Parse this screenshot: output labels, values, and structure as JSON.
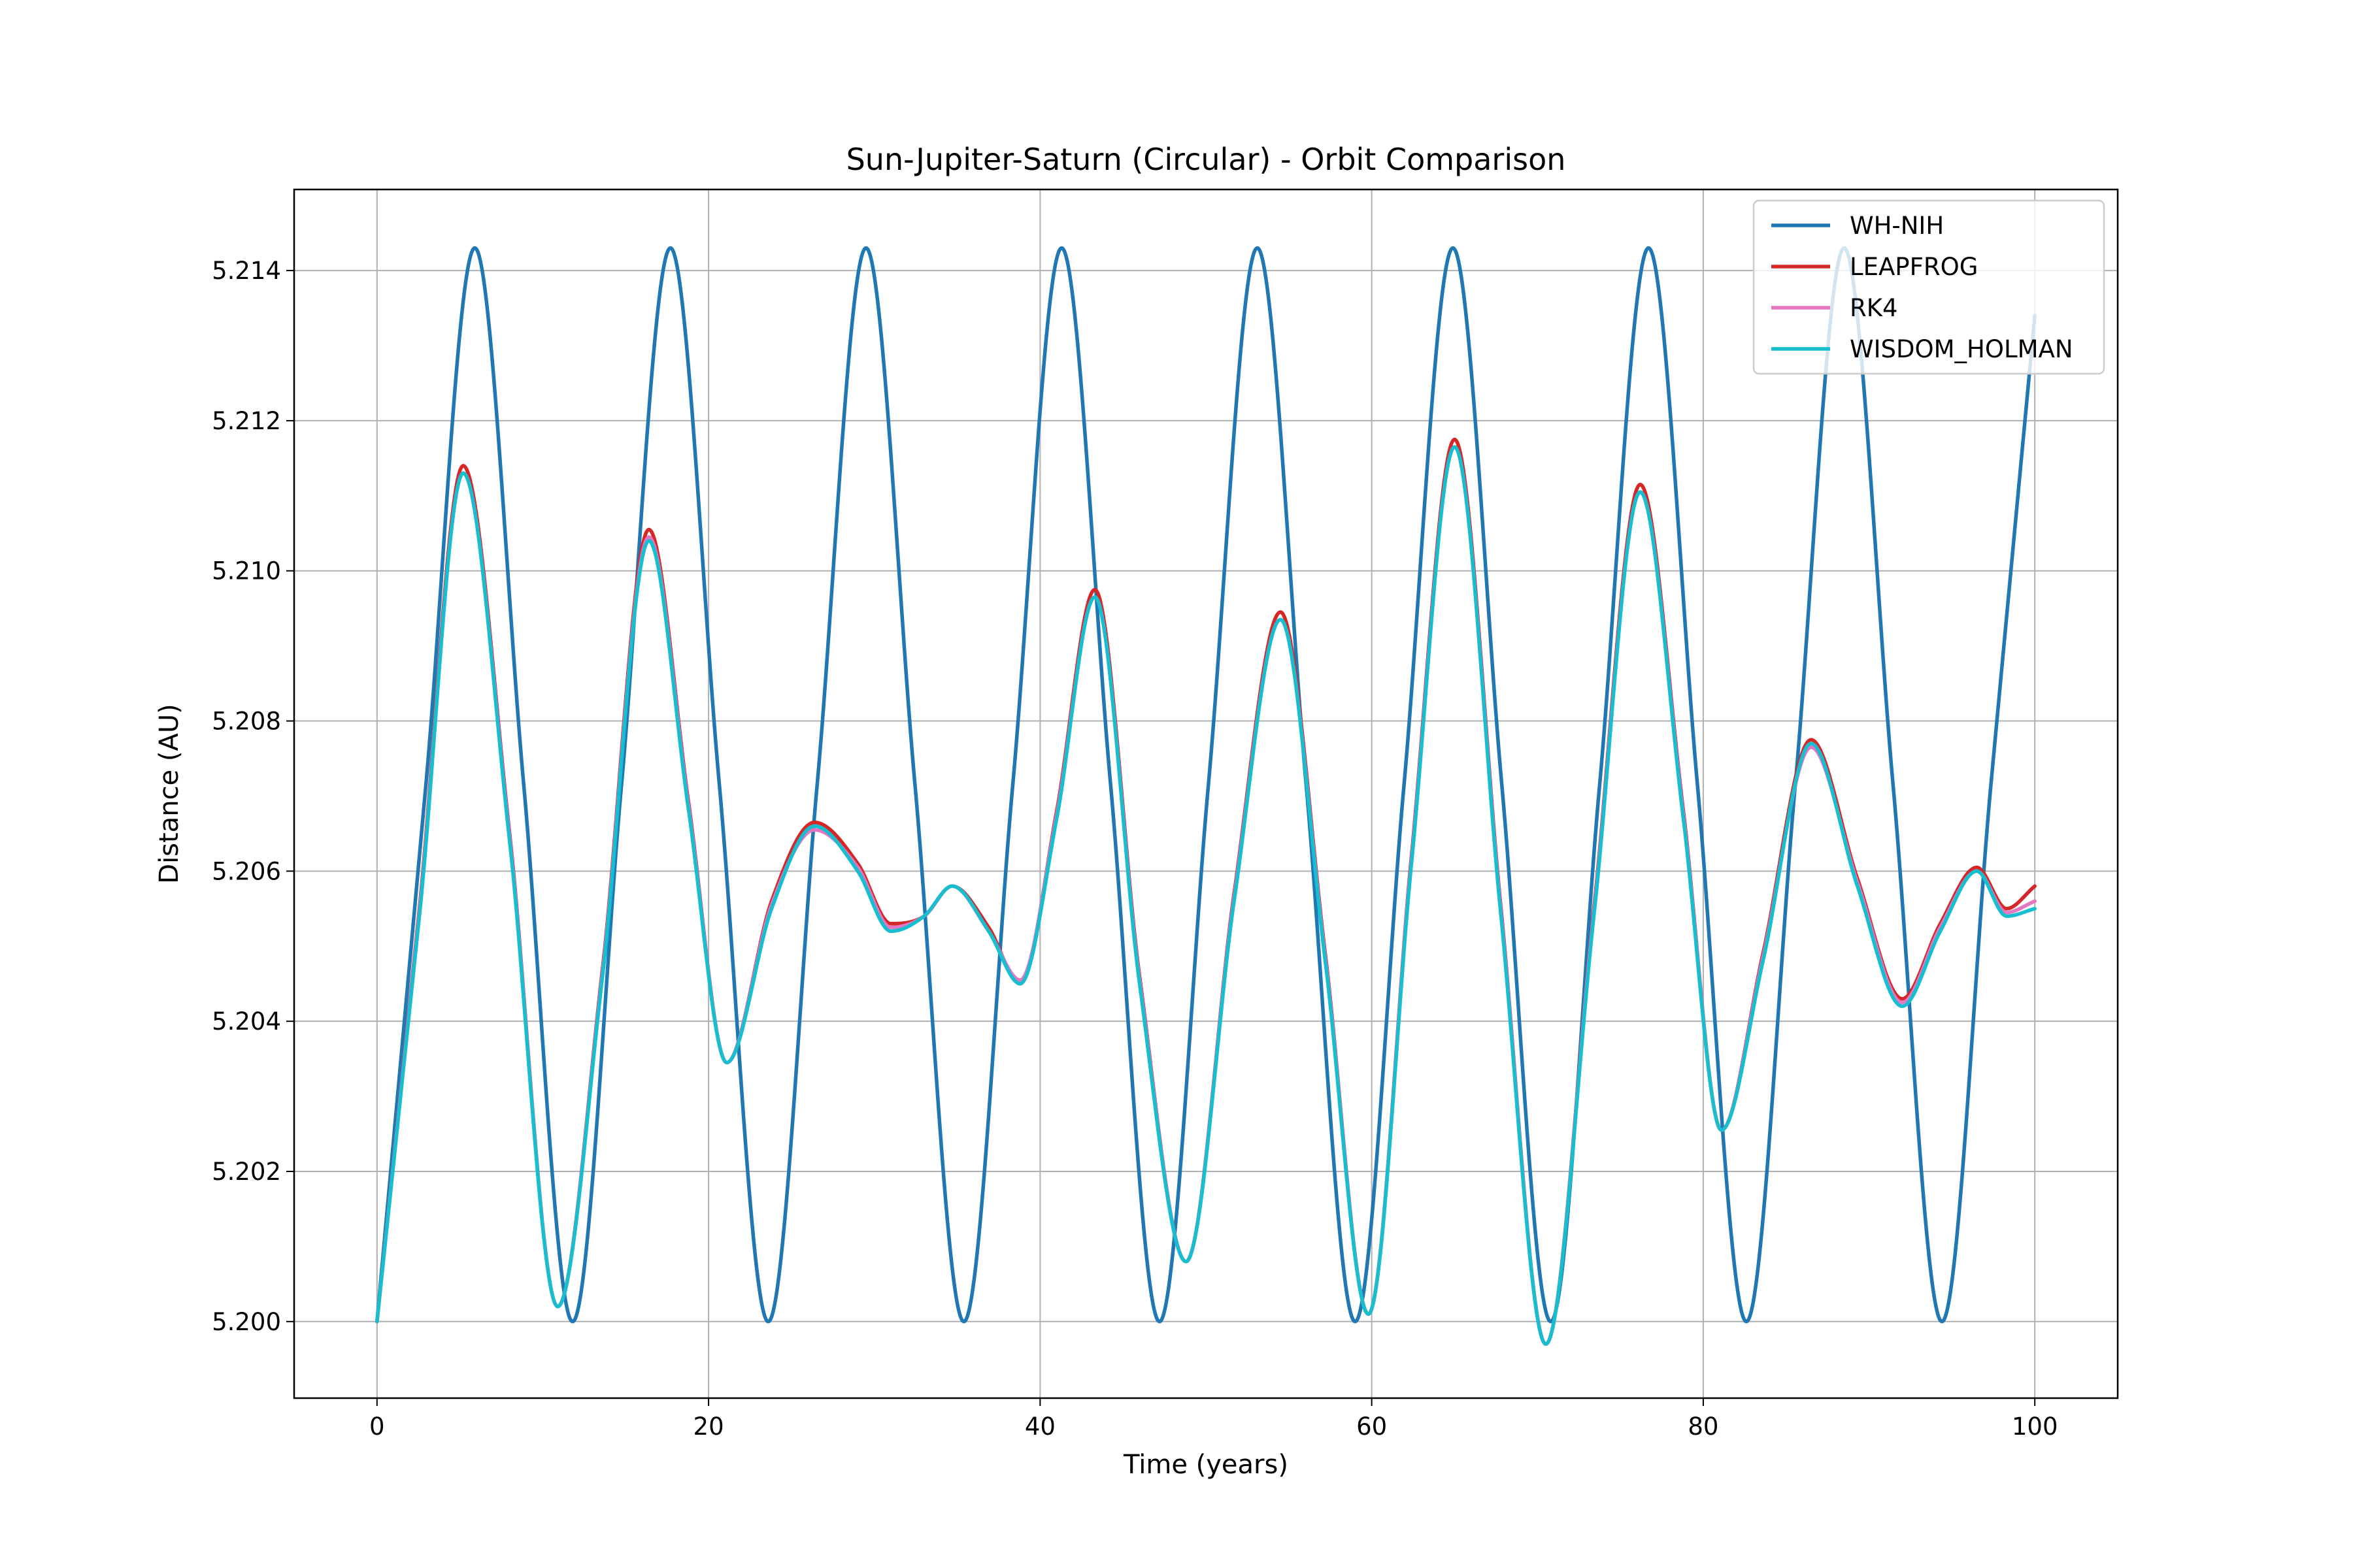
{
  "chart_data": {
    "type": "line",
    "title": "Sun-Jupiter-Saturn (Circular) - Orbit Comparison",
    "xlabel": "Time (years)",
    "ylabel": "Distance (AU)",
    "xlim": [
      -5,
      105
    ],
    "ylim": [
      5.19898,
      5.21508
    ],
    "xticks": [
      0,
      20,
      40,
      60,
      80,
      100
    ],
    "xtick_labels": [
      "0",
      "20",
      "40",
      "60",
      "80",
      "100"
    ],
    "yticks": [
      5.2,
      5.202,
      5.204,
      5.206,
      5.208,
      5.21,
      5.212,
      5.214
    ],
    "ytick_labels": [
      "5.200",
      "5.202",
      "5.204",
      "5.206",
      "5.208",
      "5.210",
      "5.212",
      "5.214"
    ],
    "grid": true,
    "legend_position": "top-right",
    "series": [
      {
        "name": "WH-NIH",
        "color": "#1f77b4",
        "x": [
          0,
          2.95,
          5.9,
          8.85,
          11.8,
          14.75,
          17.7,
          20.65,
          23.6,
          26.55,
          29.5,
          32.45,
          35.4,
          38.35,
          41.3,
          44.25,
          47.2,
          50.15,
          53.1,
          56.05,
          59.0,
          61.95,
          64.9,
          67.85,
          70.8,
          73.75,
          76.7,
          79.65,
          82.6,
          85.55,
          88.5,
          91.45,
          94.4,
          97.35,
          100
        ],
        "y": [
          5.2,
          5.20715,
          5.2143,
          5.20715,
          5.2,
          5.20715,
          5.2143,
          5.20715,
          5.2,
          5.20715,
          5.2143,
          5.20715,
          5.2,
          5.20715,
          5.2143,
          5.20715,
          5.2,
          5.20715,
          5.2143,
          5.20715,
          5.2,
          5.20715,
          5.2143,
          5.20715,
          5.2,
          5.20715,
          5.2143,
          5.20715,
          5.2,
          5.20715,
          5.2143,
          5.20715,
          5.2,
          5.20715,
          5.2134
        ]
      },
      {
        "name": "LEAPFROG",
        "color": "#d62728",
        "x": [
          0,
          2.6,
          5.2,
          8.0,
          10.9,
          13.6,
          16.4,
          18.8,
          21.1,
          23.8,
          26.4,
          29.0,
          31.0,
          33.0,
          34.7,
          36.9,
          38.8,
          41.0,
          43.3,
          46.0,
          48.8,
          51.7,
          54.5,
          57.2,
          59.8,
          62.4,
          65.0,
          67.8,
          70.5,
          73.4,
          76.2,
          78.8,
          81.1,
          83.6,
          86.5,
          89.3,
          92.0,
          94.3,
          96.5,
          98.3,
          100
        ],
        "y": [
          5.2,
          5.2056,
          5.2114,
          5.2065,
          5.2002,
          5.2047,
          5.21055,
          5.2069,
          5.20345,
          5.2056,
          5.20665,
          5.2061,
          5.2053,
          5.2054,
          5.2058,
          5.20525,
          5.2045,
          5.2068,
          5.20975,
          5.2046,
          5.2008,
          5.2057,
          5.20945,
          5.2049,
          5.2001,
          5.2062,
          5.21175,
          5.2055,
          5.1997,
          5.2055,
          5.21115,
          5.2068,
          5.20255,
          5.2049,
          5.20775,
          5.2059,
          5.2043,
          5.2053,
          5.20605,
          5.2055,
          5.2058
        ]
      },
      {
        "name": "RK4",
        "color": "#e377c2",
        "x": [
          0,
          2.6,
          5.2,
          8.0,
          10.9,
          13.6,
          16.4,
          18.8,
          21.1,
          23.8,
          26.4,
          29.0,
          31.0,
          33.0,
          34.7,
          36.9,
          38.8,
          41.0,
          43.3,
          46.0,
          48.8,
          51.7,
          54.5,
          57.2,
          59.8,
          62.4,
          65.0,
          67.8,
          70.5,
          73.4,
          76.2,
          78.8,
          81.1,
          83.6,
          86.5,
          89.3,
          92.0,
          94.3,
          96.5,
          98.3,
          100
        ],
        "y": [
          5.2,
          5.20555,
          5.2113,
          5.20645,
          5.2002,
          5.20465,
          5.21045,
          5.20685,
          5.20345,
          5.20555,
          5.20655,
          5.20605,
          5.20525,
          5.2054,
          5.2058,
          5.2052,
          5.20455,
          5.20675,
          5.20965,
          5.20455,
          5.2008,
          5.20565,
          5.20935,
          5.20485,
          5.2001,
          5.20615,
          5.21165,
          5.20545,
          5.1997,
          5.20545,
          5.21105,
          5.20675,
          5.20255,
          5.20485,
          5.20765,
          5.20585,
          5.20425,
          5.20525,
          5.206,
          5.20545,
          5.2056
        ]
      },
      {
        "name": "WISDOM_HOLMAN",
        "color": "#17becf",
        "x": [
          0,
          2.6,
          5.2,
          8.0,
          10.9,
          13.6,
          16.4,
          18.8,
          21.1,
          23.8,
          26.4,
          29.0,
          31.0,
          33.0,
          34.7,
          36.9,
          38.8,
          41.0,
          43.3,
          46.0,
          48.8,
          51.7,
          54.5,
          57.2,
          59.8,
          62.4,
          65.0,
          67.8,
          70.5,
          73.4,
          76.2,
          78.8,
          81.1,
          83.6,
          86.5,
          89.3,
          92.0,
          94.3,
          96.5,
          98.3,
          100
        ],
        "y": [
          5.2,
          5.2055,
          5.2113,
          5.2064,
          5.2002,
          5.2046,
          5.2104,
          5.2068,
          5.20345,
          5.2055,
          5.2066,
          5.206,
          5.2052,
          5.2054,
          5.2058,
          5.2052,
          5.2045,
          5.2067,
          5.20965,
          5.2045,
          5.2008,
          5.2056,
          5.20935,
          5.2048,
          5.2001,
          5.2061,
          5.21165,
          5.2054,
          5.1997,
          5.2054,
          5.21105,
          5.2067,
          5.20255,
          5.2048,
          5.2077,
          5.2058,
          5.2042,
          5.2052,
          5.206,
          5.2054,
          5.2055
        ]
      }
    ]
  }
}
